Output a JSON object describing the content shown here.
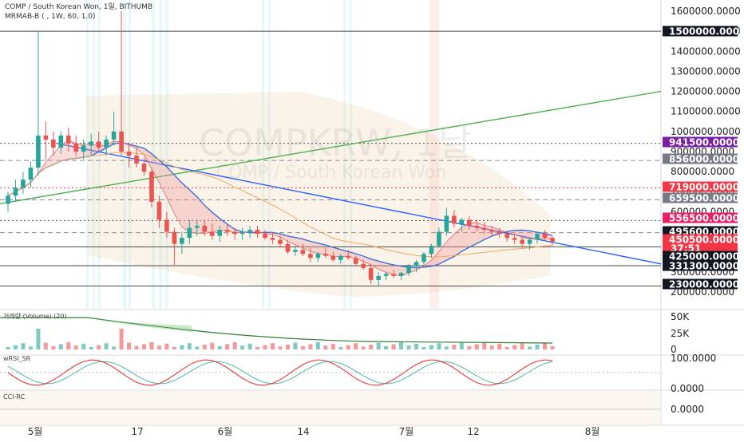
{
  "header": {
    "symbol_line": "COMP / South Korean Won, 1일, BITHUMB",
    "indicator_line": "MRMAB-B ( , 1W, 60, 1.0)"
  },
  "watermark": {
    "symbol": "COMPKRW, 1날",
    "name": "COMP / South Korean Won"
  },
  "panes": {
    "volume_title": "거래량 (Volume) (20)",
    "rsi_title": "wRSI_SR",
    "cci_title": "CCI-RC"
  },
  "colors": {
    "up": "#26a69a",
    "down": "#ef5350",
    "trend_blue": "#2962ff",
    "trend_green": "#4caf50",
    "purple_tag": "#7b1fa2",
    "pink_tag": "#e91e63",
    "red_tag": "#f23645",
    "gray_tag": "#787b86",
    "black_tag": "#131722"
  },
  "chart_data": {
    "type": "candlestick",
    "interval": "1D",
    "x_tick_labels": [
      "5월",
      "17",
      "6월",
      "14",
      "7월",
      "12",
      "8월"
    ],
    "price_axis": {
      "ylim": [
        200000,
        1600000
      ],
      "ticks": [
        "1600000.0000",
        "1500000.0000",
        "1400000.0000",
        "1300000.0000",
        "1200000.0000",
        "1100000.0000",
        "1000000.0000",
        "900000.0000",
        "800000.0000",
        "700000.0000",
        "600000.0000",
        "500000.0000",
        "400000.0000",
        "300000.0000",
        "200000.0000"
      ],
      "tick_values": [
        1600000,
        1500000,
        1400000,
        1300000,
        1200000,
        1100000,
        1000000,
        900000,
        800000,
        700000,
        600000,
        500000,
        400000,
        300000,
        200000
      ]
    },
    "price_tags": [
      {
        "label": "1500000.0000",
        "value": 1500000,
        "color": "black"
      },
      {
        "label": "941500.0000",
        "value": 941500,
        "color": "purple"
      },
      {
        "label": "856000.0000",
        "value": 856000,
        "color": "gray"
      },
      {
        "label": "719000.0000",
        "value": 719000,
        "color": "red"
      },
      {
        "label": "659500.0000",
        "value": 659500,
        "color": "gray"
      },
      {
        "label": "556500.0000",
        "value": 556500,
        "color": "pink"
      },
      {
        "label": "495600.0000",
        "value": 495600,
        "color": "black"
      },
      {
        "label": "450500.0000",
        "value": 450500,
        "color": "red"
      },
      {
        "label": "37:51",
        "value": 0,
        "color": "red"
      },
      {
        "label": "425000.0000",
        "value": 425000,
        "color": "black"
      },
      {
        "label": "331300.0000",
        "value": 331300,
        "color": "black"
      },
      {
        "label": "230000.0000",
        "value": 230000,
        "color": "black"
      }
    ],
    "horizontal_levels": [
      {
        "value": 1500000,
        "style": "solid"
      },
      {
        "value": 941500,
        "style": "dotted"
      },
      {
        "value": 856000,
        "style": "dashed"
      },
      {
        "value": 719000,
        "style": "dotted-red"
      },
      {
        "value": 659500,
        "style": "dashed"
      },
      {
        "value": 556500,
        "style": "dotted"
      },
      {
        "value": 495600,
        "style": "dashed"
      },
      {
        "value": 425000,
        "style": "solid"
      },
      {
        "value": 331300,
        "style": "solid"
      },
      {
        "value": 230000,
        "style": "solid"
      }
    ],
    "candles": [
      [
        640000,
        700000,
        600000,
        680000
      ],
      [
        680000,
        760000,
        650000,
        720000
      ],
      [
        720000,
        800000,
        690000,
        760000
      ],
      [
        760000,
        850000,
        720000,
        820000
      ],
      [
        820000,
        1500000,
        780000,
        980000
      ],
      [
        980000,
        1050000,
        860000,
        960000
      ],
      [
        960000,
        1000000,
        880000,
        920000
      ],
      [
        920000,
        1000000,
        890000,
        980000
      ],
      [
        980000,
        1020000,
        900000,
        940000
      ],
      [
        940000,
        980000,
        880000,
        900000
      ],
      [
        900000,
        960000,
        860000,
        930000
      ],
      [
        930000,
        990000,
        880000,
        950000
      ],
      [
        950000,
        1000000,
        900000,
        920000
      ],
      [
        920000,
        980000,
        880000,
        960000
      ],
      [
        960000,
        1100000,
        930000,
        1000000
      ],
      [
        1000000,
        1600000,
        880000,
        900000
      ],
      [
        900000,
        940000,
        820000,
        880000
      ],
      [
        880000,
        920000,
        820000,
        840000
      ],
      [
        840000,
        870000,
        780000,
        800000
      ],
      [
        800000,
        820000,
        620000,
        650000
      ],
      [
        650000,
        680000,
        520000,
        560000
      ],
      [
        560000,
        600000,
        470000,
        500000
      ],
      [
        500000,
        520000,
        330000,
        440000
      ],
      [
        440000,
        500000,
        390000,
        470000
      ],
      [
        470000,
        560000,
        440000,
        520000
      ],
      [
        520000,
        560000,
        480000,
        530000
      ],
      [
        530000,
        560000,
        480000,
        500000
      ],
      [
        500000,
        540000,
        460000,
        480000
      ],
      [
        480000,
        530000,
        450000,
        510000
      ],
      [
        510000,
        540000,
        480000,
        500000
      ],
      [
        500000,
        520000,
        460000,
        490000
      ],
      [
        490000,
        520000,
        460000,
        500000
      ],
      [
        500000,
        530000,
        470000,
        510000
      ],
      [
        510000,
        530000,
        470000,
        490000
      ],
      [
        490000,
        510000,
        460000,
        470000
      ],
      [
        470000,
        500000,
        440000,
        460000
      ],
      [
        460000,
        480000,
        420000,
        440000
      ],
      [
        440000,
        460000,
        390000,
        400000
      ],
      [
        400000,
        430000,
        380000,
        410000
      ],
      [
        410000,
        440000,
        380000,
        390000
      ],
      [
        390000,
        420000,
        350000,
        370000
      ],
      [
        370000,
        400000,
        350000,
        390000
      ],
      [
        390000,
        420000,
        370000,
        380000
      ],
      [
        380000,
        400000,
        350000,
        360000
      ],
      [
        360000,
        390000,
        340000,
        380000
      ],
      [
        380000,
        410000,
        360000,
        370000
      ],
      [
        370000,
        380000,
        330000,
        340000
      ],
      [
        340000,
        360000,
        310000,
        320000
      ],
      [
        320000,
        340000,
        240000,
        260000
      ],
      [
        260000,
        300000,
        230000,
        280000
      ],
      [
        280000,
        300000,
        260000,
        290000
      ],
      [
        290000,
        310000,
        270000,
        280000
      ],
      [
        280000,
        300000,
        260000,
        295000
      ],
      [
        295000,
        340000,
        280000,
        330000
      ],
      [
        330000,
        360000,
        300000,
        350000
      ],
      [
        350000,
        400000,
        330000,
        390000
      ],
      [
        390000,
        440000,
        370000,
        430000
      ],
      [
        430000,
        520000,
        420000,
        500000
      ],
      [
        500000,
        620000,
        480000,
        580000
      ],
      [
        580000,
        610000,
        520000,
        540000
      ],
      [
        540000,
        570000,
        500000,
        560000
      ],
      [
        560000,
        580000,
        510000,
        530000
      ],
      [
        530000,
        560000,
        500000,
        520000
      ],
      [
        520000,
        550000,
        490000,
        510000
      ],
      [
        510000,
        530000,
        480000,
        500000
      ],
      [
        500000,
        520000,
        470000,
        490000
      ],
      [
        490000,
        500000,
        450000,
        470000
      ],
      [
        470000,
        490000,
        440000,
        460000
      ],
      [
        460000,
        480000,
        420000,
        440000
      ],
      [
        440000,
        470000,
        410000,
        460000
      ],
      [
        460000,
        500000,
        440000,
        490000
      ],
      [
        490000,
        510000,
        460000,
        470000
      ],
      [
        470000,
        480000,
        430000,
        450500
      ]
    ],
    "volume_axis": {
      "ticks": [
        "50K",
        "25K",
        "0"
      ],
      "tick_values": [
        50000,
        25000,
        0
      ]
    },
    "rsi_axis": {
      "ticks": [
        "100.0000",
        "0.0000"
      ],
      "tick_values": [
        100,
        0
      ]
    },
    "cci_axis": {
      "ticks": [
        "0.0000"
      ],
      "tick_values": [
        0
      ]
    }
  }
}
